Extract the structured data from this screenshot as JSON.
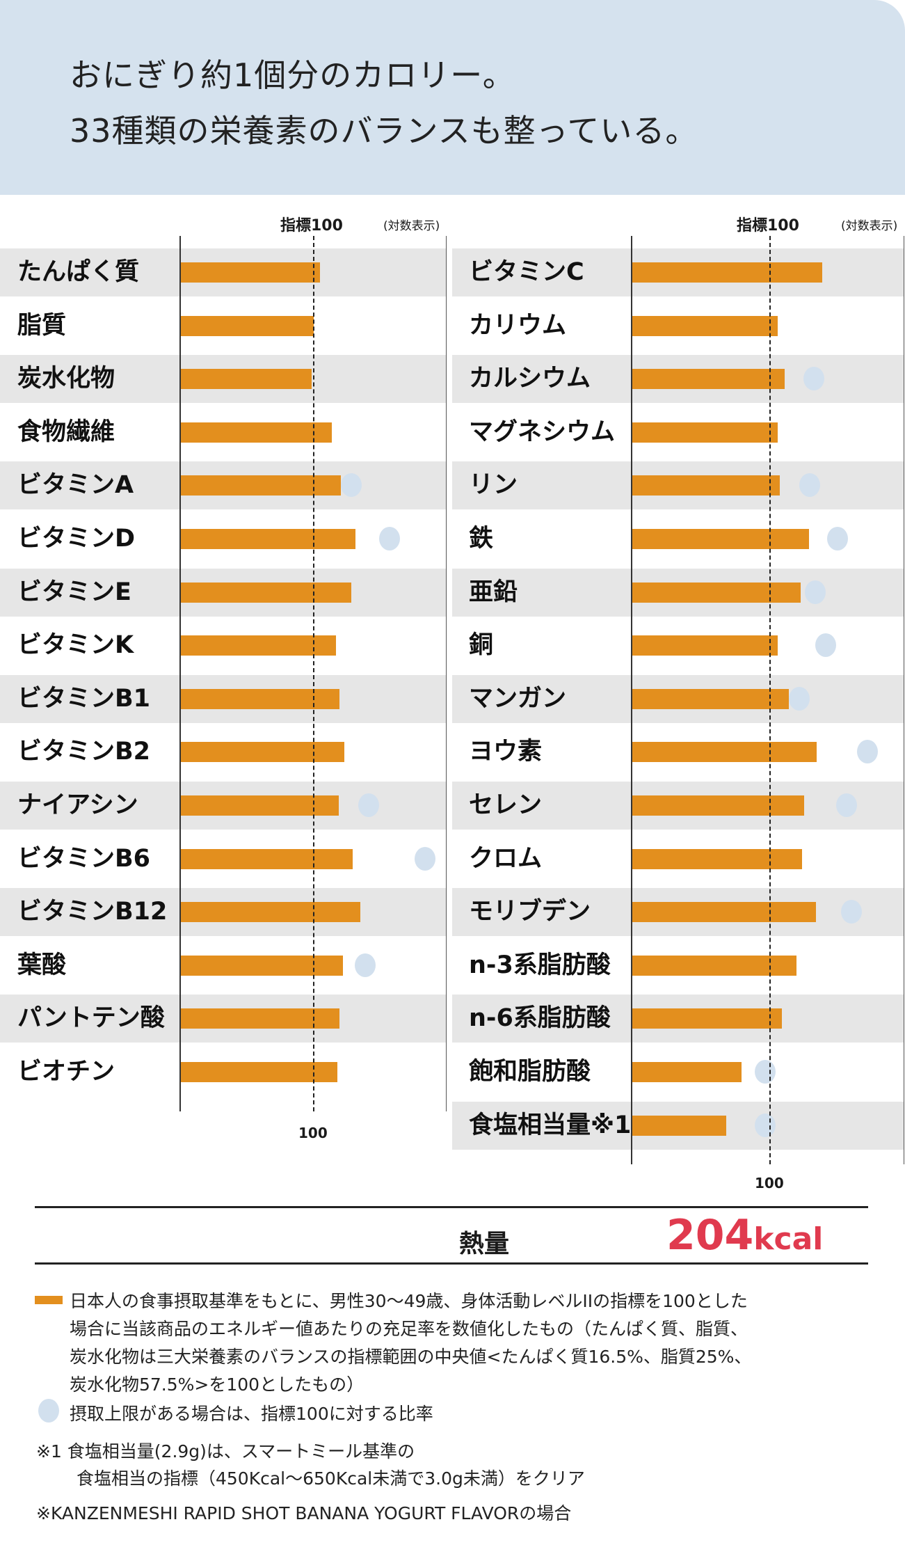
{
  "header": {
    "line1": "おにぎり約1個分のカロリー。",
    "line2": "33種類の栄養素のバランスも整っている。"
  },
  "colors": {
    "bar": "#e38f1e",
    "upper_limit_dot": "#d2e0ee",
    "header_bg": "#d5e2ee",
    "kcal": "#e03a4e",
    "band": "#e6e6e6"
  },
  "chart_data": [
    {
      "type": "bar",
      "orientation": "horizontal",
      "scale": "log",
      "reference_label": "指標100",
      "scale_note": "(対数表示)",
      "reference_value": 100,
      "axis_tick_label": "100",
      "categories": [
        "たんぱく質",
        "脂質",
        "炭水化物",
        "食物繊維",
        "ビタミンA",
        "ビタミンD",
        "ビタミンE",
        "ビタミンK",
        "ビタミンB1",
        "ビタミンB2",
        "ナイアシン",
        "ビタミンB6",
        "ビタミンB12",
        "葉酸",
        "パントテン酸",
        "ビオチン"
      ],
      "values": [
        111,
        100,
        97,
        136,
        159,
        206,
        192,
        146,
        156,
        170,
        154,
        195,
        224,
        165,
        156,
        151
      ],
      "upper_limit_ratio": [
        null,
        null,
        null,
        null,
        192,
        369,
        null,
        null,
        null,
        null,
        257,
        685,
        null,
        244,
        null,
        null
      ]
    },
    {
      "type": "bar",
      "orientation": "horizontal",
      "scale": "log",
      "reference_label": "指標100",
      "scale_note": "(対数表示)",
      "reference_value": 100,
      "axis_tick_label": "100",
      "categories": [
        "ビタミンC",
        "カリウム",
        "カルシウム",
        "マグネシウム",
        "リン",
        "鉄",
        "亜鉛",
        "銅",
        "マンガン",
        "ヨウ素",
        "セレン",
        "クロム",
        "モリブデン",
        "n-3系脂肪酸",
        "n-6系脂肪酸",
        "飽和脂肪酸",
        "食塩相当量※1"
      ],
      "values": [
        237,
        114,
        128,
        114,
        118,
        191,
        167,
        114,
        137,
        218,
        176,
        170,
        214,
        156,
        122,
        62,
        48
      ],
      "upper_limit_ratio": [
        null,
        null,
        207,
        null,
        194,
        308,
        211,
        253,
        162,
        507,
        358,
        null,
        389,
        null,
        null,
        92,
        92
      ]
    }
  ],
  "energy": {
    "label": "熱量",
    "value": "204",
    "unit": "kcal"
  },
  "notes": {
    "legend_bar_lines": [
      "日本人の食事摂取基準をもとに、男性30〜49歳、身体活動レベルIIの指標を100とした",
      "場合に当該商品のエネルギー値あたりの充足率を数値化したもの（たんぱく質、脂質、",
      "炭水化物は三大栄養素のバランスの指標範囲の中央値<たんぱく質16.5%、脂質25%、",
      "炭水化物57.5%>を100としたもの）"
    ],
    "legend_dot": "摂取上限がある場合は、指標100に対する比率",
    "footnote1_line1": "※1 食塩相当量(2.9g)は、スマートミール基準の",
    "footnote1_line2": "食塩相当の指標（450Kcal〜650Kcal未満で3.0g未満）をクリア",
    "footnote2": "※KANZENMESHI RAPID SHOT BANANA YOGURT FLAVORの場合"
  }
}
